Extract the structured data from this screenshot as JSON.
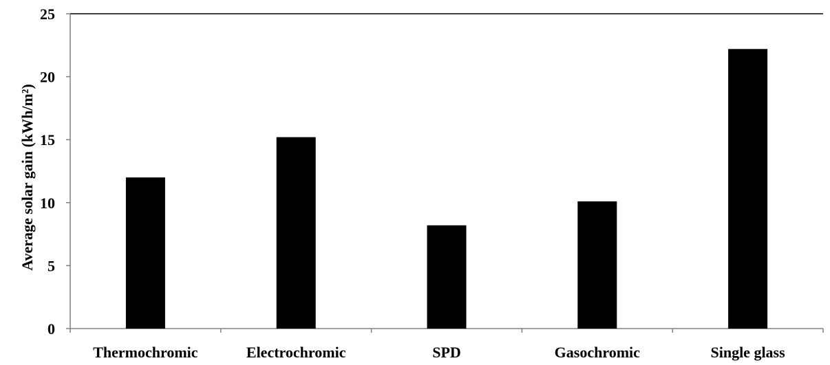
{
  "chart_data": {
    "type": "bar",
    "title": "",
    "xlabel": "",
    "ylabel": "Average solar  gain (kWh/m²)",
    "categories": [
      "Thermochromic",
      "Electrochromic",
      "SPD",
      "Gasochromic",
      "Single glass"
    ],
    "values": [
      12.0,
      15.2,
      8.2,
      10.1,
      22.2
    ],
    "ylim": [
      0,
      25
    ],
    "yticks": [
      0,
      5,
      10,
      15,
      20,
      25
    ],
    "ytick_labels": [
      "0",
      "5",
      "10",
      "15",
      "20",
      "25"
    ],
    "grid": false,
    "legend": "none",
    "colors": {
      "bar": "#000000",
      "axis": "#808080",
      "top_border": "#000000"
    }
  }
}
